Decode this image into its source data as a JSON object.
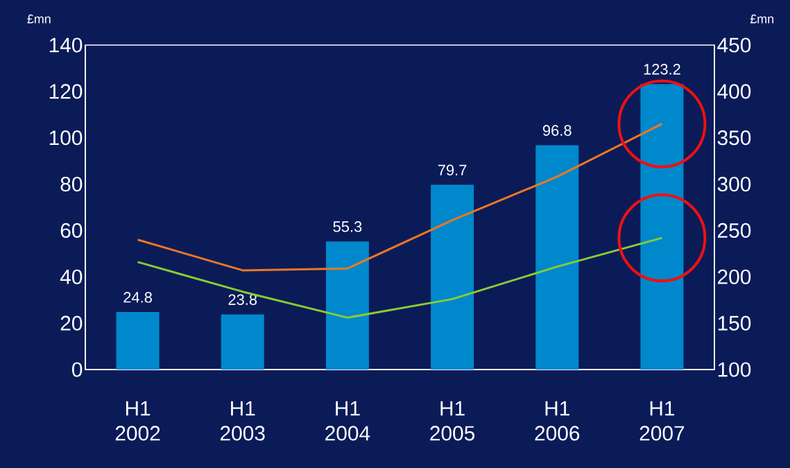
{
  "chart_data": {
    "type": "bar",
    "ylabel": "£mn",
    "y2label": "£mn",
    "categories": [
      "H1 2002",
      "H1 2003",
      "H1 2004",
      "H1 2005",
      "H1 2006",
      "H1 2007"
    ],
    "series": [
      {
        "color": "#0088cc",
        "values": [
          24.8,
          23.8,
          55.3,
          79.7,
          96.8,
          123.2
        ],
        "value_labels": [
          "24.8",
          "23.8",
          "55.3",
          "79.7",
          "96.8",
          "123.2"
        ]
      },
      {
        "type": "line",
        "axis": "y2",
        "color": "#ee7722",
        "values": [
          240,
          207,
          209,
          261,
          308,
          365
        ]
      },
      {
        "type": "line",
        "axis": "y2",
        "color": "#88cc33",
        "values": [
          216,
          184,
          156,
          176,
          211,
          242
        ]
      }
    ],
    "ylim": [
      0,
      140
    ],
    "yticks": [
      0,
      20,
      40,
      60,
      80,
      100,
      120,
      140
    ],
    "y2lim": [
      100,
      450
    ],
    "y2ticks": [
      100,
      150,
      200,
      250,
      300,
      350,
      400,
      450
    ],
    "grid": false
  }
}
